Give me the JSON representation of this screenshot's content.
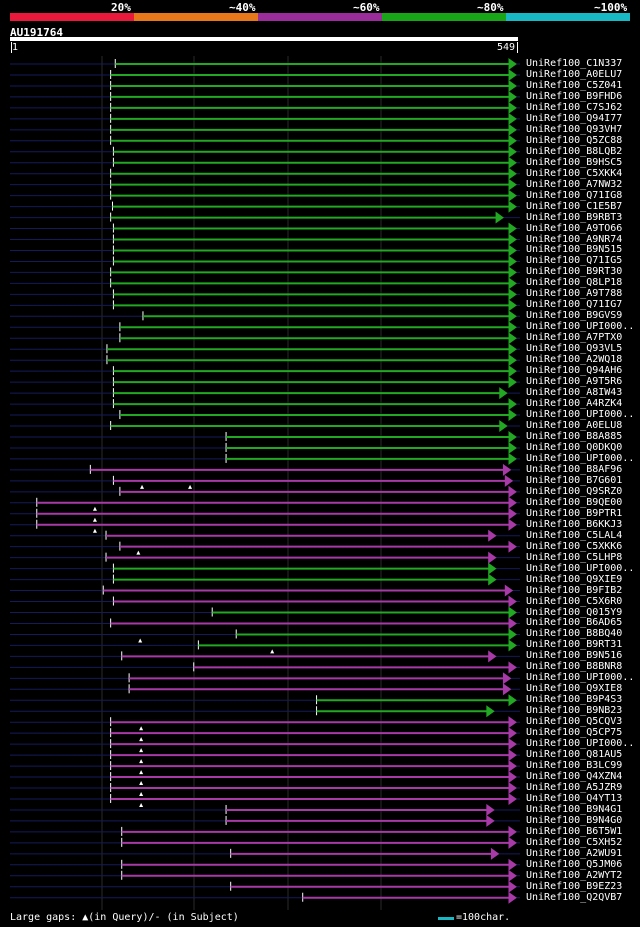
{
  "legend": {
    "segments": [
      {
        "label": "20%",
        "color": "#e8193a"
      },
      {
        "label": "~40%",
        "color": "#e8761b"
      },
      {
        "label": "~60%",
        "color": "#9b2d9b"
      },
      {
        "label": "~80%",
        "color": "#18a518"
      },
      {
        "label": "~100%",
        "color": "#18b8c4"
      }
    ]
  },
  "query": {
    "id": "AU191764",
    "start": "1",
    "end": "549",
    "length": 549
  },
  "colors": {
    "green": "#22a822",
    "purple": "#a83aa8",
    "navy": "#151a5a",
    "white": "#ffffff"
  },
  "hits": [
    {
      "label": "UniRef100_C1N337",
      "start": 115,
      "end": 549,
      "color": "green",
      "arrow": true
    },
    {
      "label": "UniRef100_A0ELU7",
      "start": 110,
      "end": 549,
      "color": "green",
      "arrow": true
    },
    {
      "label": "UniRef100_C5Z041",
      "start": 110,
      "end": 549,
      "color": "green",
      "arrow": true
    },
    {
      "label": "UniRef100_B9FHD6",
      "start": 110,
      "end": 549,
      "color": "green",
      "arrow": true
    },
    {
      "label": "UniRef100_C7SJ62",
      "start": 110,
      "end": 549,
      "color": "green",
      "arrow": true
    },
    {
      "label": "UniRef100_Q94I77",
      "start": 110,
      "end": 549,
      "color": "green",
      "arrow": true
    },
    {
      "label": "UniRef100_Q93VH7",
      "start": 110,
      "end": 549,
      "color": "green",
      "arrow": true
    },
    {
      "label": "UniRef100_Q5ZC88",
      "start": 110,
      "end": 549,
      "color": "green",
      "arrow": true
    },
    {
      "label": "UniRef100_B8LQB2",
      "start": 113,
      "end": 549,
      "color": "green",
      "arrow": true
    },
    {
      "label": "UniRef100_B9HSC5",
      "start": 113,
      "end": 549,
      "color": "green",
      "arrow": true
    },
    {
      "label": "UniRef100_C5XKK4",
      "start": 110,
      "end": 549,
      "color": "green",
      "arrow": true
    },
    {
      "label": "UniRef100_A7NW32",
      "start": 110,
      "end": 549,
      "color": "green",
      "arrow": true
    },
    {
      "label": "UniRef100_Q71IG8",
      "start": 110,
      "end": 549,
      "color": "green",
      "arrow": true
    },
    {
      "label": "UniRef100_C1E5B7",
      "start": 112,
      "end": 549,
      "color": "green",
      "arrow": true
    },
    {
      "label": "UniRef100_B9RBT3",
      "start": 110,
      "end": 535,
      "color": "green",
      "arrow": true
    },
    {
      "label": "UniRef100_A9TO66",
      "start": 113,
      "end": 549,
      "color": "green",
      "arrow": true
    },
    {
      "label": "UniRef100_A9NR74",
      "start": 113,
      "end": 549,
      "color": "green",
      "arrow": true
    },
    {
      "label": "UniRef100_B9N515",
      "start": 113,
      "end": 549,
      "color": "green",
      "arrow": true
    },
    {
      "label": "UniRef100_Q71IG5",
      "start": 113,
      "end": 549,
      "color": "green",
      "arrow": true
    },
    {
      "label": "UniRef100_B9RT30",
      "start": 110,
      "end": 549,
      "color": "green",
      "arrow": true
    },
    {
      "label": "UniRef100_Q8LP18",
      "start": 110,
      "end": 549,
      "color": "green",
      "arrow": true
    },
    {
      "label": "UniRef100_A9T788",
      "start": 113,
      "end": 549,
      "color": "green",
      "arrow": true
    },
    {
      "label": "UniRef100_Q71IG7",
      "start": 113,
      "end": 549,
      "color": "green",
      "arrow": true
    },
    {
      "label": "UniRef100_B9GVS9",
      "start": 145,
      "end": 549,
      "color": "green",
      "arrow": true
    },
    {
      "label": "UniRef100_UPI000..",
      "start": 120,
      "end": 549,
      "color": "green",
      "arrow": true
    },
    {
      "label": "UniRef100_A7PTX0",
      "start": 120,
      "end": 549,
      "color": "green",
      "arrow": true
    },
    {
      "label": "UniRef100_Q93VL5",
      "start": 106,
      "end": 549,
      "color": "green",
      "arrow": true
    },
    {
      "label": "UniRef100_A2WQ18",
      "start": 106,
      "end": 549,
      "color": "green",
      "arrow": true
    },
    {
      "label": "UniRef100_Q94AH6",
      "start": 113,
      "end": 549,
      "color": "green",
      "arrow": true
    },
    {
      "label": "UniRef100_A9T5R6",
      "start": 113,
      "end": 549,
      "color": "green",
      "arrow": true
    },
    {
      "label": "UniRef100_A8IW43",
      "start": 113,
      "end": 539,
      "color": "green",
      "arrow": true
    },
    {
      "label": "UniRef100_A4RZK4",
      "start": 113,
      "end": 549,
      "color": "green",
      "arrow": true
    },
    {
      "label": "UniRef100_UPI000..",
      "start": 120,
      "end": 549,
      "color": "green",
      "arrow": true
    },
    {
      "label": "UniRef100_A0ELU8",
      "start": 110,
      "end": 539,
      "color": "green",
      "arrow": true
    },
    {
      "label": "UniRef100_B8A885",
      "start": 235,
      "end": 549,
      "color": "green",
      "arrow": true
    },
    {
      "label": "UniRef100_Q0DKQ0",
      "start": 235,
      "end": 549,
      "color": "green",
      "arrow": true
    },
    {
      "label": "UniRef100_UPI000..",
      "start": 235,
      "end": 549,
      "color": "green",
      "arrow": true
    },
    {
      "label": "UniRef100_B8AF96",
      "start": 88,
      "end": 543,
      "color": "purple",
      "arrow": true
    },
    {
      "label": "UniRef100_B7G601",
      "start": 113,
      "end": 545,
      "color": "purple",
      "arrow": true
    },
    {
      "label": "UniRef100_Q9SRZ0",
      "start": 120,
      "end": 549,
      "color": "purple",
      "arrow": true
    },
    {
      "label": "UniRef100_B9QE00",
      "start": 30,
      "end": 549,
      "color": "purple",
      "arrow": true
    },
    {
      "label": "UniRef100_B9PTR1",
      "start": 30,
      "end": 549,
      "color": "purple",
      "arrow": true
    },
    {
      "label": "UniRef100_B6KKJ3",
      "start": 30,
      "end": 549,
      "color": "purple",
      "arrow": true
    },
    {
      "label": "UniRef100_C5LAL4",
      "start": 105,
      "end": 527,
      "color": "purple",
      "arrow": true
    },
    {
      "label": "UniRef100_C5XKK6",
      "start": 120,
      "end": 549,
      "color": "purple",
      "arrow": true
    },
    {
      "label": "UniRef100_C5LHP8",
      "start": 105,
      "end": 527,
      "color": "purple",
      "arrow": true
    },
    {
      "label": "UniRef100_UPI000..",
      "start": 113,
      "end": 527,
      "color": "green",
      "arrow": true
    },
    {
      "label": "UniRef100_Q9XIE9",
      "start": 113,
      "end": 527,
      "color": "green",
      "arrow": true
    },
    {
      "label": "UniRef100_B9FIB2",
      "start": 102,
      "end": 545,
      "color": "purple",
      "arrow": true
    },
    {
      "label": "UniRef100_C5X6R0",
      "start": 113,
      "end": 549,
      "color": "purple",
      "arrow": true
    },
    {
      "label": "UniRef100_Q015Y9",
      "start": 220,
      "end": 549,
      "color": "green",
      "arrow": true
    },
    {
      "label": "UniRef100_B6AD65",
      "start": 110,
      "end": 549,
      "color": "purple",
      "arrow": true
    },
    {
      "label": "UniRef100_B8BQ40",
      "start": 246,
      "end": 549,
      "color": "green",
      "arrow": true
    },
    {
      "label": "UniRef100_B9RT31",
      "start": 205,
      "end": 549,
      "color": "green",
      "arrow": true
    },
    {
      "label": "UniRef100_B9N516",
      "start": 122,
      "end": 527,
      "color": "purple",
      "arrow": true
    },
    {
      "label": "UniRef100_B8BNR8",
      "start": 200,
      "end": 549,
      "color": "purple",
      "arrow": true
    },
    {
      "label": "UniRef100_UPI000..",
      "start": 130,
      "end": 543,
      "color": "purple",
      "arrow": true
    },
    {
      "label": "UniRef100_Q9XIE8",
      "start": 130,
      "end": 543,
      "color": "purple",
      "arrow": true
    },
    {
      "label": "UniRef100_B9P4S3",
      "start": 333,
      "end": 549,
      "color": "green",
      "arrow": true
    },
    {
      "label": "UniRef100_B9NB23",
      "start": 333,
      "end": 525,
      "color": "green",
      "arrow": true
    },
    {
      "label": "UniRef100_Q5CQV3",
      "start": 110,
      "end": 549,
      "color": "purple",
      "arrow": true
    },
    {
      "label": "UniRef100_Q5CP75",
      "start": 110,
      "end": 549,
      "color": "purple",
      "arrow": true
    },
    {
      "label": "UniRef100_UPI000..",
      "start": 110,
      "end": 549,
      "color": "purple",
      "arrow": true
    },
    {
      "label": "UniRef100_Q81AU5",
      "start": 110,
      "end": 549,
      "color": "purple",
      "arrow": true
    },
    {
      "label": "UniRef100_B3LC99",
      "start": 110,
      "end": 549,
      "color": "purple",
      "arrow": true
    },
    {
      "label": "UniRef100_Q4XZN4",
      "start": 110,
      "end": 549,
      "color": "purple",
      "arrow": true
    },
    {
      "label": "UniRef100_A5JZR9",
      "start": 110,
      "end": 549,
      "color": "purple",
      "arrow": true
    },
    {
      "label": "UniRef100_Q4YT13",
      "start": 110,
      "end": 549,
      "color": "purple",
      "arrow": true
    },
    {
      "label": "UniRef100_B9N4G1",
      "start": 235,
      "end": 525,
      "color": "purple",
      "arrow": true
    },
    {
      "label": "UniRef100_B9N4G0",
      "start": 235,
      "end": 525,
      "color": "purple",
      "arrow": true
    },
    {
      "label": "UniRef100_B6T5W1",
      "start": 122,
      "end": 549,
      "color": "purple",
      "arrow": true
    },
    {
      "label": "UniRef100_C5XH52",
      "start": 122,
      "end": 549,
      "color": "purple",
      "arrow": true
    },
    {
      "label": "UniRef100_A2WU91",
      "start": 240,
      "end": 530,
      "color": "purple",
      "arrow": true
    },
    {
      "label": "UniRef100_Q5JM06",
      "start": 122,
      "end": 549,
      "color": "purple",
      "arrow": true
    },
    {
      "label": "UniRef100_A2WYT2",
      "start": 122,
      "end": 549,
      "color": "purple",
      "arrow": true
    },
    {
      "label": "UniRef100_B9EZ23",
      "start": 240,
      "end": 549,
      "color": "purple",
      "arrow": true
    },
    {
      "label": "UniRef100_Q2QVB7",
      "start": 318,
      "end": 549,
      "color": "purple",
      "arrow": true
    }
  ],
  "query_gaps": [
    {
      "row": 38,
      "pos": 144
    },
    {
      "row": 38,
      "pos": 196
    },
    {
      "row": 40,
      "pos": 93
    },
    {
      "row": 41,
      "pos": 93
    },
    {
      "row": 42,
      "pos": 93
    },
    {
      "row": 44,
      "pos": 140
    },
    {
      "row": 52,
      "pos": 142
    },
    {
      "row": 53,
      "pos": 285
    },
    {
      "row": 60,
      "pos": 143
    },
    {
      "row": 61,
      "pos": 143
    },
    {
      "row": 62,
      "pos": 143
    },
    {
      "row": 63,
      "pos": 143
    },
    {
      "row": 64,
      "pos": 143
    },
    {
      "row": 65,
      "pos": 143
    },
    {
      "row": 66,
      "pos": 143
    },
    {
      "row": 67,
      "pos": 143
    }
  ],
  "footer": {
    "gaps_text": "Large gaps: ▲(in Query)/- (in Subject)",
    "scale_text": "=100char."
  }
}
